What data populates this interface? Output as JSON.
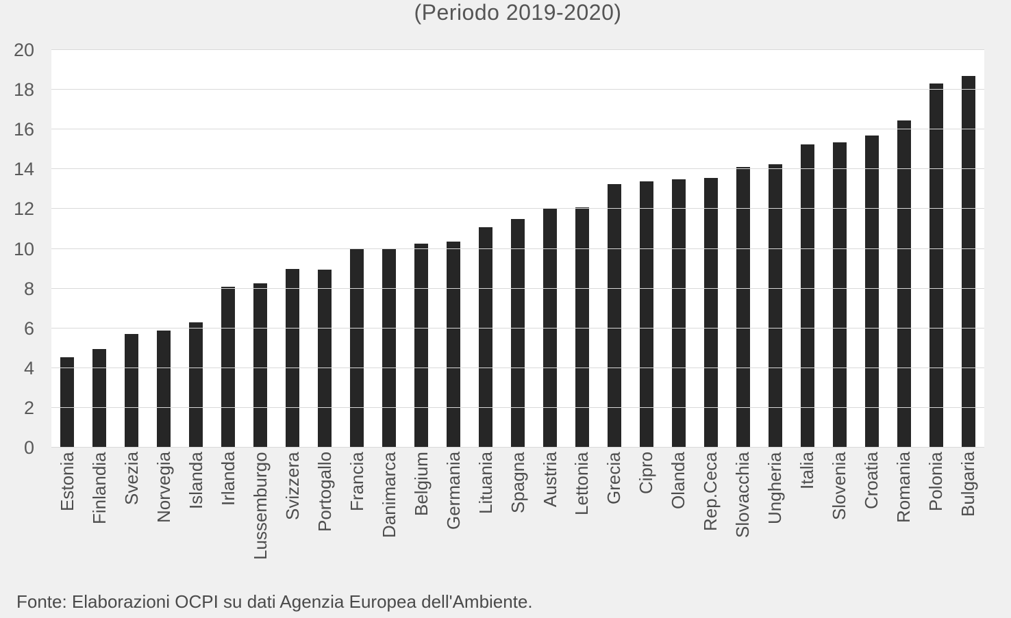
{
  "page": {
    "background_color": "#f0f0f0"
  },
  "chart": {
    "title": "(Periodo 2019-2020)",
    "source_note": "Fonte: Elaborazioni OCPI su dati Agenzia Europea dell'Ambiente."
  },
  "chart_data": {
    "type": "bar",
    "title": "(Periodo 2019-2020)",
    "categories": [
      "Estonia",
      "Finlandia",
      "Svezia",
      "Norvegia",
      "Islanda",
      "Irlanda",
      "Lussemburgo",
      "Svizzera",
      "Portogallo",
      "Francia",
      "Danimarca",
      "Belgium",
      "Germania",
      "Lituania",
      "Spagna",
      "Austria",
      "Lettonia",
      "Grecia",
      "Cipro",
      "Olanda",
      "Rep.Ceca",
      "Slovacchia",
      "Ungheria",
      "Italia",
      "Slovenia",
      "Croatia",
      "Romania",
      "Polonia",
      "Bulgaria"
    ],
    "values": [
      4.55,
      4.95,
      5.7,
      5.9,
      6.3,
      8.1,
      8.25,
      9.0,
      8.95,
      10.0,
      10.0,
      10.25,
      10.35,
      11.1,
      11.5,
      12.0,
      12.1,
      13.25,
      13.4,
      13.5,
      13.55,
      14.1,
      14.25,
      15.25,
      15.35,
      15.7,
      16.45,
      18.3,
      18.7
    ],
    "xlabel": "",
    "ylabel": "",
    "ylim": [
      0,
      20
    ],
    "yticks": [
      0,
      2,
      4,
      6,
      8,
      10,
      12,
      14,
      16,
      18,
      20
    ],
    "grid": "horizontal",
    "legend": "none",
    "bar_color": "#262626",
    "plot_background": "#ffffff",
    "gridline_color": "#d9d9d9",
    "axis_text_color": "#595959",
    "source": "Fonte: Elaborazioni OCPI su dati Agenzia Europea dell'Ambiente."
  }
}
